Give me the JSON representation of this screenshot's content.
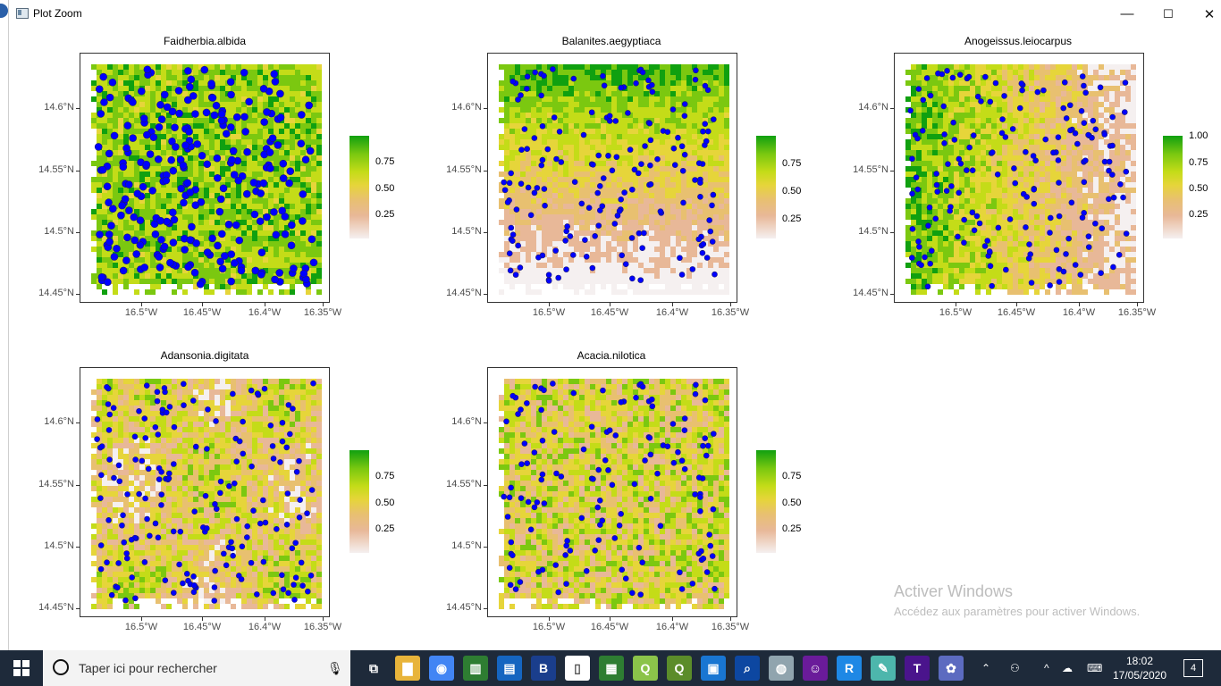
{
  "window": {
    "title": "Plot Zoom",
    "minimize_glyph": "—",
    "maximize_glyph": "☐",
    "close_glyph": "✕"
  },
  "plots": [
    {
      "title": "Faidherbia.albida",
      "legend_ticks": [
        "0.75",
        "0.50",
        "0.25"
      ],
      "density": "high",
      "suitability": "high"
    },
    {
      "title": "Balanites.aegyptiaca",
      "legend_ticks": [
        "0.75",
        "0.50",
        "0.25"
      ],
      "density": "medium",
      "suitability": "north-high"
    },
    {
      "title": "Anogeissus.leiocarpus",
      "legend_ticks": [
        "1.00",
        "0.75",
        "0.50",
        "0.25"
      ],
      "density": "medium",
      "suitability": "west-high"
    },
    {
      "title": "Adansonia.digitata",
      "legend_ticks": [
        "0.75",
        "0.50",
        "0.25"
      ],
      "density": "medium",
      "suitability": "low"
    },
    {
      "title": "Acacia.nilotica",
      "legend_ticks": [
        "0.75",
        "0.50",
        "0.25"
      ],
      "density": "low",
      "suitability": "mixed"
    }
  ],
  "axes": {
    "y_ticks": [
      "14.6°N",
      "14.55°N",
      "14.5°N",
      "14.45°N"
    ],
    "x_ticks": [
      "16.5°W",
      "16.45°W",
      "16.4°W",
      "16.35°W"
    ]
  },
  "colors": {
    "point_fill": "#0000ff",
    "high": "#10a010",
    "mid": "#e6d53a",
    "low": "#e8b898",
    "none": "#f5f0f0"
  },
  "watermark": {
    "line1": "Activer Windows",
    "line2": "Accédez aux paramètres pour activer Windows."
  },
  "taskbar": {
    "search_placeholder": "Taper ici pour rechercher",
    "time": "18:02",
    "date": "17/05/2020",
    "notifications": "4",
    "icons": [
      "task-view-icon",
      "file-explorer-icon",
      "chrome-icon",
      "spreadsheet-icon",
      "calc-icon",
      "b-app-icon",
      "document-icon",
      "photo-icon",
      "qgis-icon",
      "qgis2-icon",
      "presentation-icon",
      "magnifier-icon",
      "globe-icon",
      "github-icon",
      "r-icon",
      "notes-icon",
      "texmaker-icon",
      "paint-icon"
    ]
  }
}
